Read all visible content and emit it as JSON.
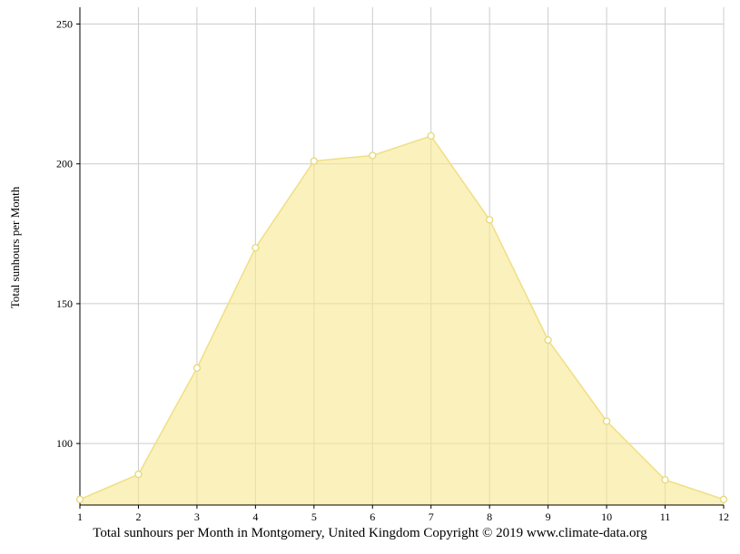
{
  "chart_data": {
    "type": "area",
    "categories": [
      "1",
      "2",
      "3",
      "4",
      "5",
      "6",
      "7",
      "8",
      "9",
      "10",
      "11",
      "12"
    ],
    "values": [
      80,
      89,
      127,
      170,
      201,
      203,
      210,
      180,
      137,
      108,
      87,
      80
    ],
    "title": "",
    "xlabel": "Total sunhours per Month in Montgomery, United Kingdom Copyright © 2019 www.climate-data.org",
    "ylabel": "Total sunhours per Month",
    "ylim": [
      78,
      256
    ],
    "yticks": [
      100,
      150,
      200,
      250
    ],
    "grid": true,
    "legend": "none",
    "colors": {
      "area_fill": "#F7E88F",
      "line": "#EFDF85",
      "marker_fill": "#FFFFFF",
      "marker_stroke": "#E6D87A",
      "grid": "#CCCCCC",
      "axis": "#000000",
      "text": "#000000",
      "background": "#FFFFFF"
    }
  }
}
